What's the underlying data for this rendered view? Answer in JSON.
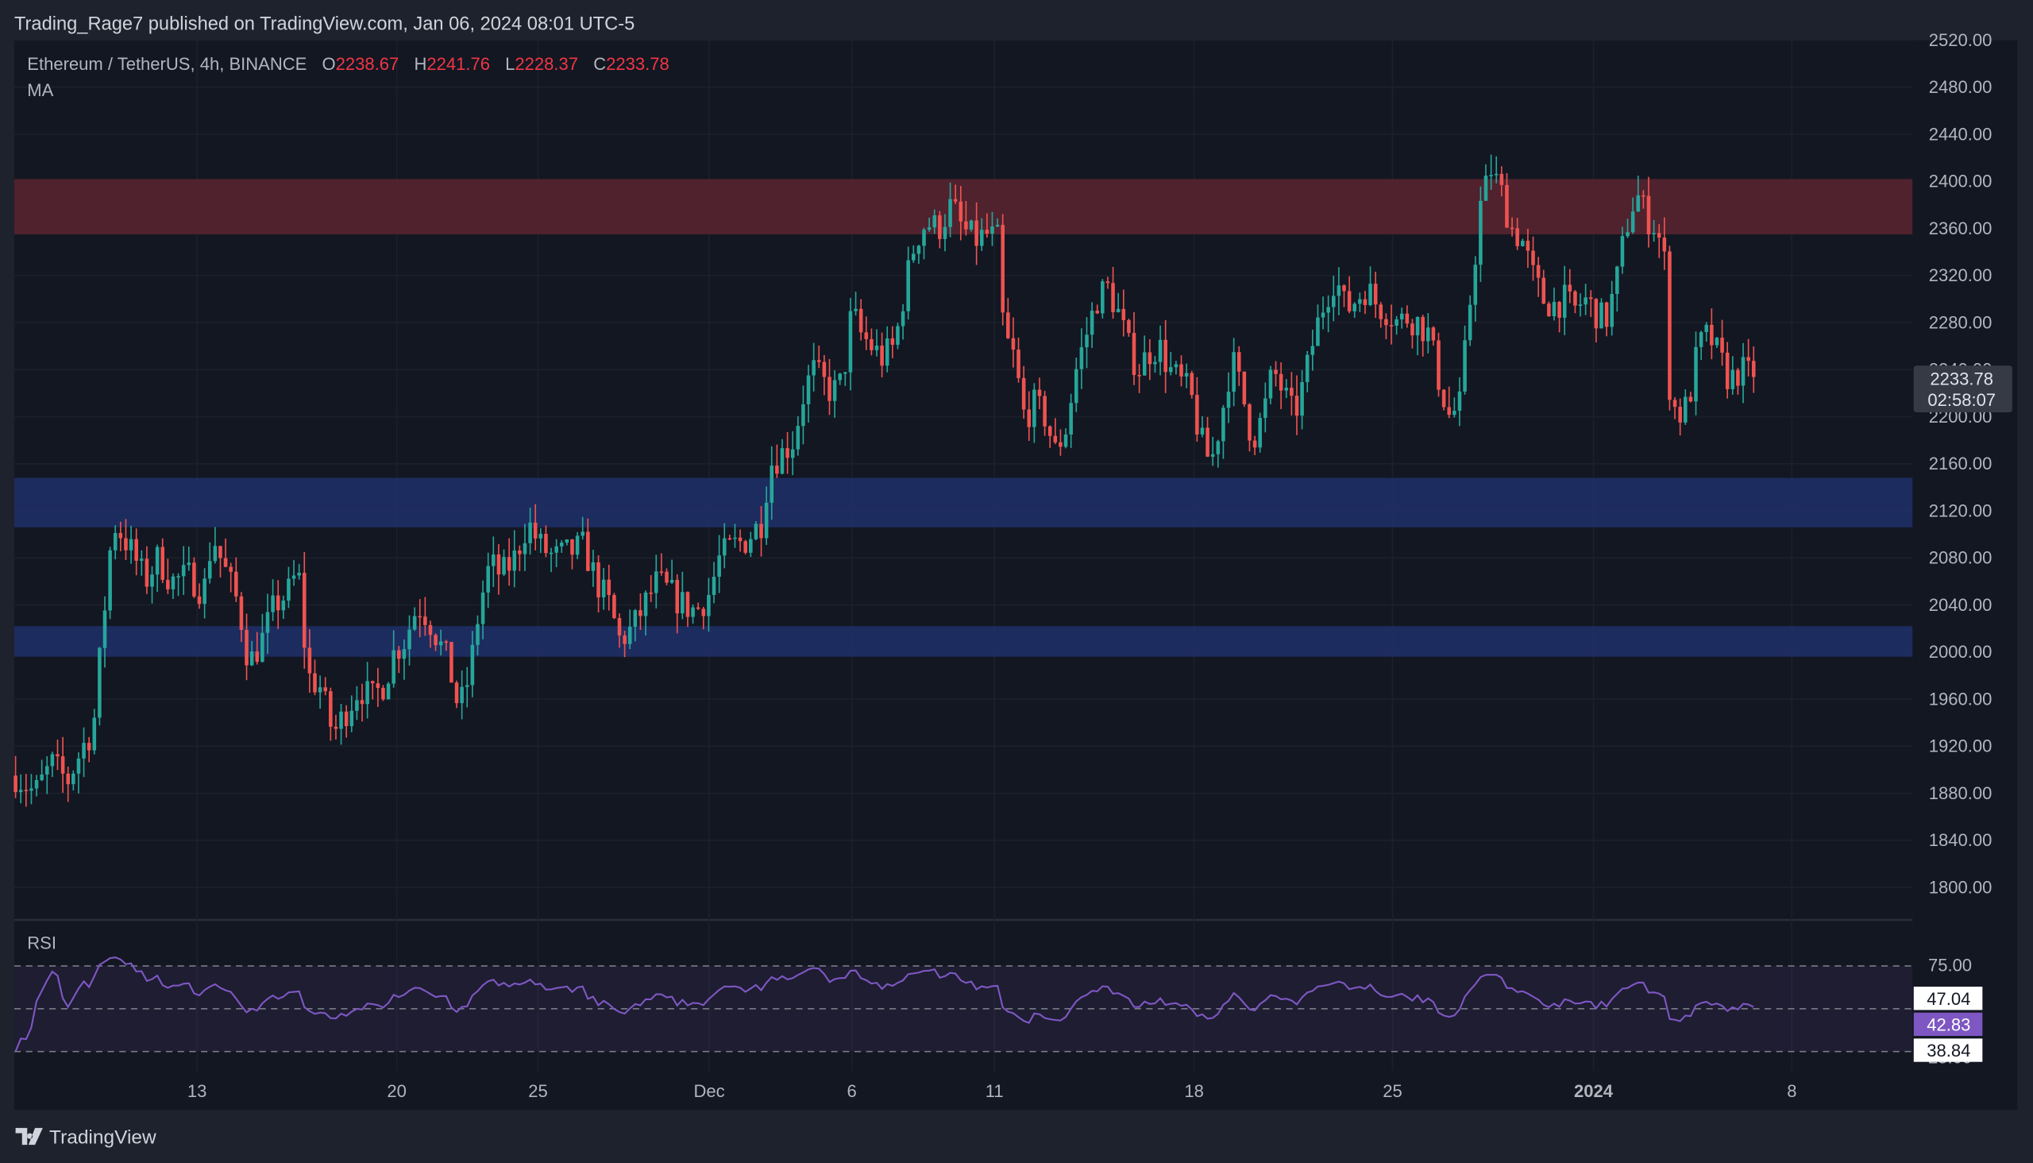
{
  "header": {
    "published_by": "Trading_Rage7 published on TradingView.com, Jan 06, 2024 08:01 UTC-5"
  },
  "legend": {
    "symbol": "Ethereum / TetherUS, 4h, BINANCE",
    "o_label": "O",
    "o_value": "2238.67",
    "h_label": "H",
    "h_value": "2241.76",
    "l_label": "L",
    "l_value": "2228.37",
    "c_label": "C",
    "c_value": "2233.78",
    "indicator": "MA"
  },
  "last_price": {
    "price": "2233.78",
    "countdown": "02:58:07"
  },
  "rsi": {
    "label": "RSI",
    "upper_band": "75.00",
    "lower_band": "25.00",
    "values": [
      "47.04",
      "42.83",
      "38.84"
    ]
  },
  "footer": {
    "brand": "TradingView"
  },
  "colors": {
    "background": "#131722",
    "up": "#26a69a",
    "down": "#ef5350",
    "resistance_zone": "#5b2530",
    "support_zone": "#1f2f66",
    "rsi_line": "#7e57c2"
  },
  "chart_data": {
    "type": "candlestick",
    "symbol": "Ethereum / TetherUS",
    "interval": "4h",
    "exchange": "BINANCE",
    "ylim": [
      1780,
      2520
    ],
    "y_ticks": [
      2520,
      2480,
      2440,
      2400,
      2360,
      2320,
      2280,
      2240,
      2200,
      2160,
      2120,
      2080,
      2040,
      2000,
      1960,
      1920,
      1880,
      1840,
      1800
    ],
    "x_ticks": [
      {
        "label": "13",
        "bold": false
      },
      {
        "label": "20",
        "bold": false
      },
      {
        "label": "25",
        "bold": false
      },
      {
        "label": "Dec",
        "bold": false
      },
      {
        "label": "6",
        "bold": false
      },
      {
        "label": "11",
        "bold": false
      },
      {
        "label": "18",
        "bold": false
      },
      {
        "label": "25",
        "bold": false
      },
      {
        "label": "2024",
        "bold": true
      },
      {
        "label": "8",
        "bold": false
      }
    ],
    "zones": [
      {
        "type": "resistance",
        "from": 2355,
        "to": 2402
      },
      {
        "type": "support",
        "from": 2106,
        "to": 2148
      },
      {
        "type": "support",
        "from": 1996,
        "to": 2022
      }
    ],
    "close_path": [
      [
        0,
        1895
      ],
      [
        15,
        1880
      ],
      [
        28,
        1905
      ],
      [
        40,
        1890
      ],
      [
        52,
        1920
      ],
      [
        60,
        1935
      ],
      [
        68,
        2030
      ],
      [
        75,
        2110
      ],
      [
        82,
        2100
      ],
      [
        92,
        2080
      ],
      [
        100,
        2060
      ],
      [
        110,
        2080
      ],
      [
        120,
        2060
      ],
      [
        135,
        2065
      ],
      [
        145,
        2050
      ],
      [
        152,
        2100
      ],
      [
        158,
        2080
      ],
      [
        165,
        2060
      ],
      [
        172,
        2040
      ],
      [
        180,
        1990
      ],
      [
        190,
        2010
      ],
      [
        200,
        2040
      ],
      [
        210,
        2050
      ],
      [
        218,
        2070
      ],
      [
        225,
        1980
      ],
      [
        235,
        1970
      ],
      [
        245,
        1930
      ],
      [
        255,
        1950
      ],
      [
        265,
        1970
      ],
      [
        275,
        1960
      ],
      [
        285,
        1975
      ],
      [
        292,
        2000
      ],
      [
        300,
        2010
      ],
      [
        310,
        2040
      ],
      [
        318,
        2030
      ],
      [
        326,
        2010
      ],
      [
        334,
        1990
      ],
      [
        342,
        1950
      ],
      [
        350,
        1980
      ],
      [
        358,
        2040
      ],
      [
        366,
        2075
      ],
      [
        375,
        2065
      ],
      [
        385,
        2080
      ],
      [
        395,
        2110
      ],
      [
        405,
        2090
      ],
      [
        415,
        2080
      ],
      [
        428,
        2085
      ],
      [
        438,
        2090
      ],
      [
        448,
        2060
      ],
      [
        458,
        2040
      ],
      [
        466,
        2010
      ],
      [
        476,
        2020
      ],
      [
        485,
        2040
      ],
      [
        495,
        2060
      ],
      [
        505,
        2050
      ],
      [
        515,
        2040
      ],
      [
        525,
        2035
      ],
      [
        535,
        2050
      ],
      [
        543,
        2080
      ],
      [
        553,
        2090
      ],
      [
        563,
        2095
      ],
      [
        575,
        2110
      ],
      [
        582,
        2160
      ],
      [
        592,
        2170
      ],
      [
        600,
        2180
      ],
      [
        608,
        2220
      ],
      [
        615,
        2240
      ],
      [
        622,
        2230
      ],
      [
        630,
        2220
      ],
      [
        638,
        2230
      ],
      [
        645,
        2290
      ],
      [
        652,
        2270
      ],
      [
        660,
        2260
      ],
      [
        668,
        2250
      ],
      [
        678,
        2260
      ],
      [
        686,
        2310
      ],
      [
        694,
        2350
      ],
      [
        702,
        2365
      ],
      [
        712,
        2360
      ],
      [
        722,
        2380
      ],
      [
        730,
        2360
      ],
      [
        740,
        2350
      ],
      [
        750,
        2355
      ],
      [
        758,
        2350
      ],
      [
        762,
        2270
      ],
      [
        770,
        2250
      ],
      [
        778,
        2200
      ],
      [
        786,
        2210
      ],
      [
        794,
        2200
      ],
      [
        802,
        2170
      ],
      [
        810,
        2190
      ],
      [
        818,
        2240
      ],
      [
        826,
        2270
      ],
      [
        834,
        2300
      ],
      [
        842,
        2310
      ],
      [
        850,
        2290
      ],
      [
        858,
        2260
      ],
      [
        866,
        2240
      ],
      [
        874,
        2255
      ],
      [
        882,
        2260
      ],
      [
        890,
        2240
      ],
      [
        898,
        2230
      ],
      [
        906,
        2220
      ],
      [
        914,
        2180
      ],
      [
        922,
        2160
      ],
      [
        930,
        2200
      ],
      [
        938,
        2250
      ],
      [
        946,
        2220
      ],
      [
        954,
        2180
      ],
      [
        962,
        2200
      ],
      [
        970,
        2240
      ],
      [
        978,
        2220
      ],
      [
        986,
        2200
      ],
      [
        994,
        2230
      ],
      [
        1002,
        2270
      ],
      [
        1010,
        2300
      ],
      [
        1018,
        2320
      ],
      [
        1026,
        2290
      ],
      [
        1034,
        2300
      ],
      [
        1042,
        2310
      ],
      [
        1050,
        2295
      ],
      [
        1058,
        2290
      ],
      [
        1066,
        2280
      ],
      [
        1074,
        2285
      ],
      [
        1082,
        2280
      ],
      [
        1090,
        2270
      ],
      [
        1098,
        2230
      ],
      [
        1106,
        2200
      ],
      [
        1114,
        2210
      ],
      [
        1122,
        2300
      ],
      [
        1130,
        2380
      ],
      [
        1138,
        2410
      ],
      [
        1146,
        2390
      ],
      [
        1154,
        2360
      ],
      [
        1162,
        2350
      ],
      [
        1170,
        2320
      ],
      [
        1178,
        2300
      ],
      [
        1186,
        2295
      ],
      [
        1194,
        2300
      ],
      [
        1202,
        2290
      ],
      [
        1210,
        2300
      ],
      [
        1218,
        2290
      ],
      [
        1226,
        2280
      ],
      [
        1234,
        2310
      ],
      [
        1242,
        2360
      ],
      [
        1250,
        2390
      ],
      [
        1258,
        2370
      ],
      [
        1266,
        2360
      ],
      [
        1272,
        2330
      ],
      [
        1276,
        2220
      ],
      [
        1282,
        2200
      ],
      [
        1290,
        2210
      ],
      [
        1298,
        2260
      ],
      [
        1306,
        2270
      ],
      [
        1314,
        2250
      ],
      [
        1322,
        2230
      ],
      [
        1330,
        2240
      ],
      [
        1338,
        2235
      ],
      [
        1342,
        2233.78
      ]
    ],
    "last_price": 2233.78
  }
}
